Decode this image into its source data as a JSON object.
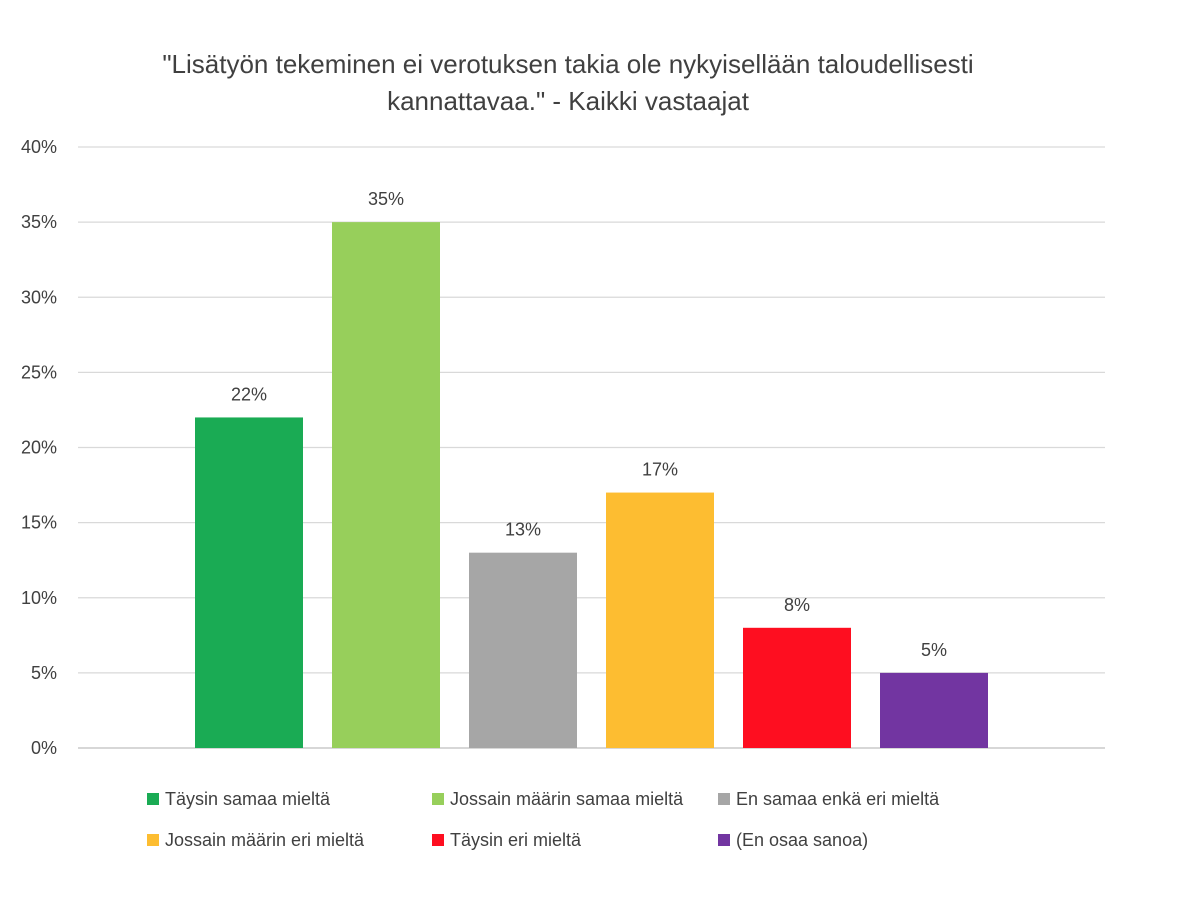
{
  "chart_data": {
    "type": "bar",
    "title_lines": [
      "\"Lisätyön tekeminen ei verotuksen takia ole nykyisellään taloudellisesti",
      "kannattavaa.\" - Kaikki vastaajat"
    ],
    "categories": [
      "Täysin samaa mieltä",
      "Jossain määrin samaa mieltä",
      "En samaa enkä eri mieltä",
      "Jossain määrin eri mieltä",
      "Täysin eri mieltä",
      "(En osaa sanoa)"
    ],
    "values": [
      22,
      35,
      13,
      17,
      8,
      5
    ],
    "data_labels": [
      "22%",
      "35%",
      "13%",
      "17%",
      "8%",
      "5%"
    ],
    "colors": [
      "#1aab54",
      "#97cf5b",
      "#a6a6a6",
      "#fdbd31",
      "#fe0e20",
      "#7235a1"
    ],
    "ylim": [
      0,
      40
    ],
    "yticks": [
      0,
      5,
      10,
      15,
      20,
      25,
      30,
      35,
      40
    ],
    "ytick_labels": [
      "0%",
      "5%",
      "10%",
      "15%",
      "20%",
      "25%",
      "30%",
      "35%",
      "40%"
    ],
    "grid": true,
    "legend_position": "bottom"
  }
}
